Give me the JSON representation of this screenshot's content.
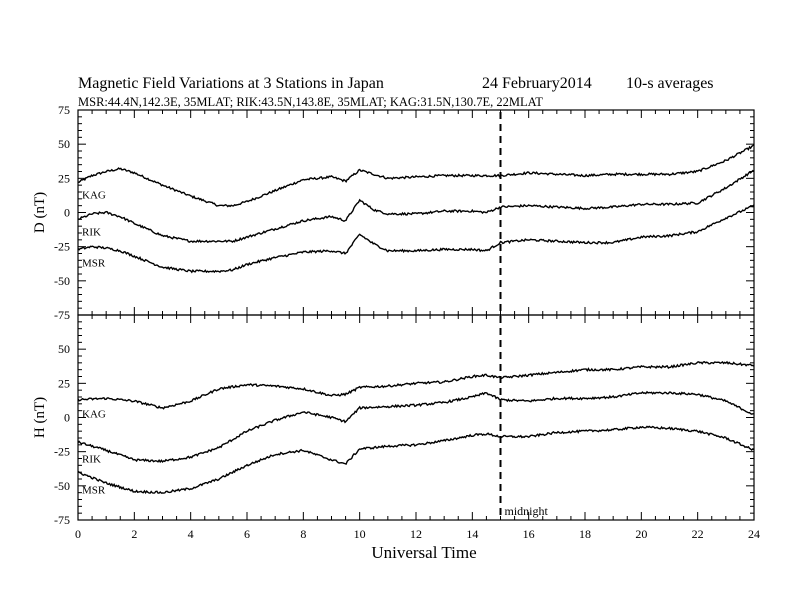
{
  "figure": {
    "title": "Magnetic Field Variations at 3 Stations in Japan",
    "date": "24 February2014",
    "averaging": "10-s averages",
    "stations_line": "MSR:44.4N,142.3E, 35MLAT;  RIK:43.5N,143.8E, 35MLAT;  KAG:31.5N,130.7E, 22MLAT",
    "xlabel": "Universal Time",
    "midnight_label": "midnight",
    "midnight_ut": 15
  },
  "chart_data": [
    {
      "type": "line",
      "panel": "top",
      "ylabel": "D (nT)",
      "xlim": [
        0,
        24
      ],
      "ylim": [
        -75,
        75
      ],
      "xticks": [
        0,
        2,
        4,
        6,
        8,
        10,
        12,
        14,
        16,
        18,
        20,
        22,
        24
      ],
      "yticks": [
        -75,
        -50,
        -25,
        0,
        25,
        50,
        75
      ],
      "series": [
        {
          "name": "KAG",
          "x": [
            0,
            0.5,
            1,
            1.5,
            2,
            3,
            4,
            5,
            5.5,
            6,
            7,
            8,
            9,
            9.5,
            10,
            10.5,
            11,
            12,
            13,
            14,
            14.5,
            15,
            16,
            17,
            18,
            19,
            20,
            21,
            22,
            23,
            24
          ],
          "y": [
            22,
            27,
            30,
            32,
            29,
            20,
            12,
            5,
            5,
            8,
            16,
            24,
            26,
            23,
            31,
            28,
            25,
            26,
            27,
            27,
            27,
            27,
            29,
            28,
            27,
            28,
            28,
            28,
            30,
            38,
            49
          ]
        },
        {
          "name": "RIK",
          "x": [
            0,
            0.5,
            1,
            1.5,
            2,
            3,
            4,
            5,
            5.5,
            6,
            7,
            8,
            9,
            9.5,
            10,
            10.5,
            11,
            12,
            13,
            14,
            14.5,
            15,
            16,
            17,
            18,
            19,
            20,
            21,
            22,
            23,
            24
          ],
          "y": [
            -5,
            -1,
            0,
            -3,
            -8,
            -17,
            -21,
            -21,
            -21,
            -18,
            -12,
            -6,
            -3,
            -6,
            9,
            2,
            -1,
            -1,
            1,
            1,
            0,
            4,
            5,
            4,
            3,
            4,
            6,
            6,
            7,
            18,
            31
          ]
        },
        {
          "name": "MSR",
          "x": [
            0,
            0.5,
            1,
            1.5,
            2,
            3,
            4,
            5,
            5.5,
            6,
            7,
            8,
            9,
            9.5,
            10,
            10.5,
            11,
            12,
            13,
            14,
            14.5,
            15,
            16,
            17,
            18,
            19,
            20,
            21,
            22,
            23,
            24
          ],
          "y": [
            -27,
            -25,
            -26,
            -28,
            -32,
            -40,
            -43,
            -43,
            -42,
            -38,
            -33,
            -29,
            -28,
            -30,
            -16,
            -23,
            -28,
            -28,
            -27,
            -27,
            -28,
            -22,
            -20,
            -21,
            -22,
            -22,
            -18,
            -17,
            -14,
            -4,
            5
          ]
        }
      ]
    },
    {
      "type": "line",
      "panel": "bottom",
      "ylabel": "H (nT)",
      "xlim": [
        0,
        24
      ],
      "ylim": [
        -75,
        75
      ],
      "xticks": [
        0,
        2,
        4,
        6,
        8,
        10,
        12,
        14,
        16,
        18,
        20,
        22,
        24
      ],
      "yticks": [
        -75,
        -50,
        -25,
        0,
        25,
        50,
        75
      ],
      "series": [
        {
          "name": "KAG",
          "x": [
            0,
            1,
            2,
            3,
            4,
            5,
            6,
            7,
            8,
            9,
            9.5,
            10,
            11,
            12,
            13,
            14,
            14.5,
            15,
            16,
            17,
            18,
            19,
            20,
            21,
            22,
            23,
            24
          ],
          "y": [
            13,
            14,
            12,
            7,
            12,
            21,
            24,
            23,
            21,
            16,
            17,
            22,
            23,
            25,
            26,
            30,
            31,
            29,
            31,
            33,
            35,
            35,
            37,
            37,
            40,
            40,
            38
          ]
        },
        {
          "name": "RIK",
          "x": [
            0,
            1,
            2,
            3,
            4,
            5,
            6,
            7,
            8,
            9,
            9.5,
            10,
            11,
            12,
            13,
            14,
            14.5,
            15,
            16,
            17,
            18,
            19,
            20,
            21,
            22,
            23,
            24
          ],
          "y": [
            -18,
            -24,
            -31,
            -32,
            -29,
            -22,
            -10,
            -2,
            4,
            0,
            -3,
            7,
            8,
            9,
            11,
            15,
            18,
            13,
            12,
            14,
            14,
            15,
            18,
            18,
            17,
            12,
            2
          ]
        },
        {
          "name": "MSR",
          "x": [
            0,
            1,
            2,
            3,
            4,
            5,
            6,
            7,
            8,
            9,
            9.5,
            10,
            11,
            12,
            13,
            14,
            14.5,
            15,
            16,
            17,
            18,
            19,
            20,
            21,
            22,
            23,
            24
          ],
          "y": [
            -40,
            -48,
            -54,
            -55,
            -52,
            -45,
            -35,
            -27,
            -24,
            -31,
            -34,
            -23,
            -21,
            -20,
            -17,
            -13,
            -12,
            -14,
            -14,
            -11,
            -10,
            -9,
            -7,
            -8,
            -10,
            -15,
            -24
          ]
        }
      ]
    }
  ]
}
